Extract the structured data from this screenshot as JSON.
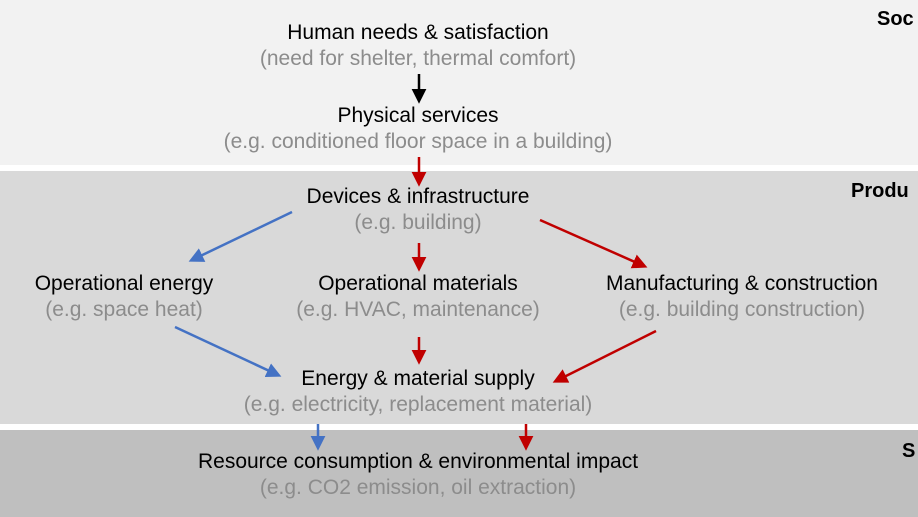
{
  "bands": [
    {
      "label": "Soc"
    },
    {
      "label": "Produ"
    },
    {
      "label": "S"
    }
  ],
  "nodes": {
    "human_needs": {
      "title": "Human needs & satisfaction",
      "example": "(need for shelter, thermal comfort)"
    },
    "physical_services": {
      "title": "Physical services",
      "example": "(e.g. conditioned floor space in a building)"
    },
    "devices": {
      "title": "Devices & infrastructure",
      "example": "(e.g. building)"
    },
    "operational_energy": {
      "title": "Operational energy",
      "example": "(e.g. space heat)"
    },
    "operational_materials": {
      "title": "Operational materials",
      "example": "(e.g. HVAC, maintenance)"
    },
    "manufacturing": {
      "title": "Manufacturing & construction",
      "example": "(e.g. building construction)"
    },
    "supply": {
      "title": "Energy & material supply",
      "example": "(e.g. electricity, replacement material)"
    },
    "resource": {
      "title": "Resource consumption & environmental impact",
      "example": "(e.g. CO2 emission, oil extraction)"
    }
  },
  "colors": {
    "black_arrow": "#000000",
    "red_arrow": "#c00000",
    "blue_arrow": "#4472c4"
  }
}
